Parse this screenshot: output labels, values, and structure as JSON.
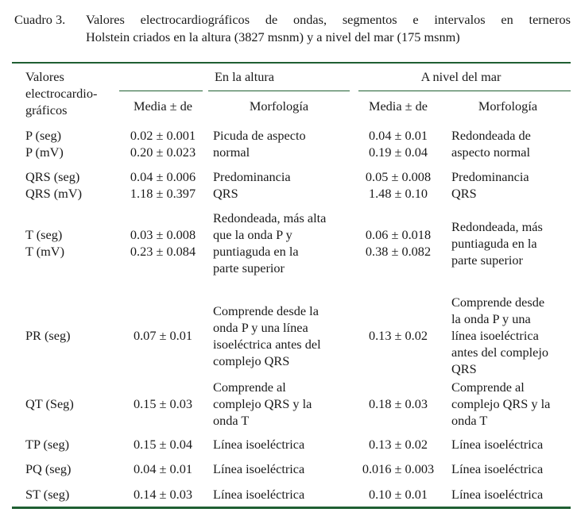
{
  "caption": {
    "number": "Cuadro 3.",
    "line1": "Valores electrocardiográficos de ondas, segmentos e intervalos en terneros",
    "line2": "Holstein criados en la altura (3827 msnm) y a nivel del mar (175 msnm)"
  },
  "header": {
    "col1": [
      "Valores",
      "electrocardio-",
      "gráficos"
    ],
    "group_altura": "En la altura",
    "group_mar": "A nivel del mar",
    "media": "Media ± de",
    "morfologia": "Morfología"
  },
  "rows": [
    {
      "valores": [
        "P (seg)",
        "P (mV)"
      ],
      "alt_media": [
        "0.02 ± 0.001",
        "0.20 ± 0.023"
      ],
      "alt_morf": [
        "Picuda de aspecto",
        "normal"
      ],
      "mar_media": [
        "0.04 ± 0.01",
        "0.19 ± 0.04"
      ],
      "mar_morf": [
        "Redondeada de",
        "aspecto normal"
      ]
    },
    {
      "valores": [
        "QRS (seg)",
        "QRS (mV)"
      ],
      "alt_media": [
        "0.04 ± 0.006",
        "1.18 ± 0.397"
      ],
      "alt_morf": [
        "Predominancia",
        "QRS"
      ],
      "mar_media": [
        "0.05 ± 0.008",
        "1.48 ± 0.10"
      ],
      "mar_morf": [
        "Predominancia",
        "QRS"
      ]
    },
    {
      "valores": [
        "T (seg)",
        "T (mV)"
      ],
      "alt_media": [
        "0.03 ± 0.008",
        "0.23 ± 0.084"
      ],
      "alt_morf": [
        "Redondeada, más alta",
        "que la onda P y",
        "puntiaguda en la",
        "parte superior"
      ],
      "mar_media": [
        "0.06 ± 0.018",
        "0.38 ± 0.082"
      ],
      "mar_morf": [
        "Redondeada, más",
        "puntiaguda en la",
        "parte superior"
      ]
    },
    {
      "valores": [
        "PR (seg)"
      ],
      "alt_media": [
        "0.07 ± 0.01"
      ],
      "alt_morf": [
        "Comprende desde la",
        "onda P y una línea",
        "isoeléctrica antes del",
        "complejo QRS"
      ],
      "mar_media": [
        "0.13 ± 0.02"
      ],
      "mar_morf": [
        "Comprende desde",
        "la onda P y una",
        "línea isoeléctrica",
        "antes del complejo",
        "QRS"
      ]
    },
    {
      "valores": [
        "QT (Seg)"
      ],
      "alt_media": [
        "0.15 ± 0.03"
      ],
      "alt_morf": [
        "Comprende al",
        "complejo QRS y la",
        "onda T"
      ],
      "mar_media": [
        "0.18 ± 0.03"
      ],
      "mar_morf": [
        "Comprende al",
        "complejo QRS y la",
        "onda T"
      ]
    },
    {
      "valores": [
        "TP (seg)"
      ],
      "alt_media": [
        "0.15 ± 0.04"
      ],
      "alt_morf": [
        "Línea isoeléctrica"
      ],
      "mar_media": [
        "0.13 ± 0.02"
      ],
      "mar_morf": [
        "Línea isoeléctrica"
      ]
    },
    {
      "valores": [
        "PQ (seg)"
      ],
      "alt_media": [
        "0.04 ± 0.01"
      ],
      "alt_morf": [
        "Línea isoeléctrica"
      ],
      "mar_media": [
        "0.016 ± 0.003"
      ],
      "mar_morf": [
        "Línea isoeléctrica"
      ]
    },
    {
      "valores": [
        "ST (seg)"
      ],
      "alt_media": [
        "0.14 ± 0.03"
      ],
      "alt_morf": [
        "Línea isoeléctrica"
      ],
      "mar_media": [
        "0.10 ± 0.01"
      ],
      "mar_morf": [
        "Línea isoeléctrica"
      ]
    }
  ]
}
